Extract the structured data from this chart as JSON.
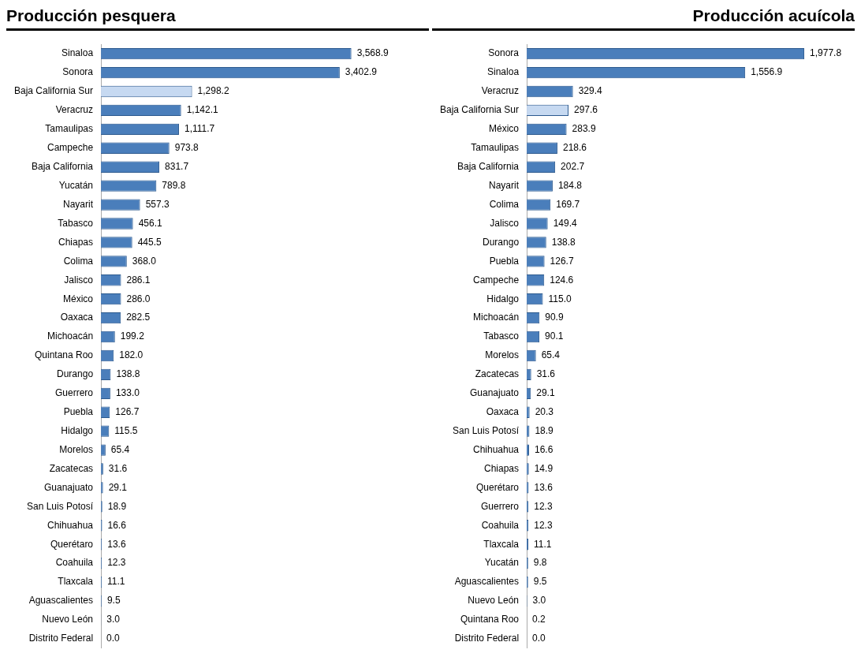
{
  "chart_data": [
    {
      "type": "bar",
      "orientation": "horizontal",
      "title": "Producción pesquera",
      "tick_labels": "y",
      "grid": false,
      "legend": false,
      "categories": [
        "Sinaloa",
        "Sonora",
        "Baja California Sur",
        "Veracruz",
        "Tamaulipas",
        "Campeche",
        "Baja California",
        "Yucatán",
        "Nayarit",
        "Tabasco",
        "Chiapas",
        "Colima",
        "Jalisco",
        "México",
        "Oaxaca",
        "Michoacán",
        "Quintana Roo",
        "Durango",
        "Guerrero",
        "Puebla",
        "Hidalgo",
        "Morelos",
        "Zacatecas",
        "Guanajuato",
        "San Luis Potosí",
        "Chihuahua",
        "Querétaro",
        "Coahuila",
        "Tlaxcala",
        "Aguascalientes",
        "Nuevo León",
        "Distrito Federal"
      ],
      "values": [
        3568.9,
        3402.9,
        1298.2,
        1142.1,
        1111.7,
        973.8,
        831.7,
        789.8,
        557.3,
        456.1,
        445.5,
        368.0,
        286.1,
        286.0,
        282.5,
        199.2,
        182.0,
        138.8,
        133.0,
        126.7,
        115.5,
        65.4,
        31.6,
        29.1,
        18.9,
        16.6,
        13.6,
        12.3,
        11.1,
        9.5,
        3.0,
        0.0
      ],
      "value_labels": [
        "3,568.9",
        "3,402.9",
        "1,298.2",
        "1,142.1",
        "1,111.7",
        "973.8",
        "831.7",
        "789.8",
        "557.3",
        "456.1",
        "445.5",
        "368.0",
        "286.1",
        "286.0",
        "282.5",
        "199.2",
        "182.0",
        "138.8",
        "133.0",
        "126.7",
        "115.5",
        "65.4",
        "31.6",
        "29.1",
        "18.9",
        "16.6",
        "13.6",
        "12.3",
        "11.1",
        "9.5",
        "3.0",
        "0.0"
      ],
      "colors": [
        "#4a7ebb",
        "#4a7ebb",
        "#c6d9f1",
        "#4a7ebb",
        "#4a7ebb",
        "#4a7ebb",
        "#4a7ebb",
        "#4a7ebb",
        "#4a7ebb",
        "#4a7ebb",
        "#4a7ebb",
        "#4a7ebb",
        "#4a7ebb",
        "#4a7ebb",
        "#4a7ebb",
        "#4a7ebb",
        "#4a7ebb",
        "#4a7ebb",
        "#4a7ebb",
        "#4a7ebb",
        "#4a7ebb",
        "#4a7ebb",
        "#4a7ebb",
        "#4a7ebb",
        "#4a7ebb",
        "#4a7ebb",
        "#4a7ebb",
        "#4a7ebb",
        "#4a7ebb",
        "#4a7ebb",
        "#4a7ebb",
        "#4a7ebb"
      ]
    },
    {
      "type": "bar",
      "orientation": "horizontal",
      "title": "Producción acuícola",
      "tick_labels": "y",
      "grid": false,
      "legend": false,
      "categories": [
        "Sonora",
        "Sinaloa",
        "Veracruz",
        "Baja California Sur",
        "México",
        "Tamaulipas",
        "Baja California",
        "Nayarit",
        "Colima",
        "Jalisco",
        "Durango",
        "Puebla",
        "Campeche",
        "Hidalgo",
        "Michoacán",
        "Tabasco",
        "Morelos",
        "Zacatecas",
        "Guanajuato",
        "Oaxaca",
        "San Luis Potosí",
        "Chihuahua",
        "Chiapas",
        "Querétaro",
        "Guerrero",
        "Coahuila",
        "Tlaxcala",
        "Yucatán",
        "Aguascalientes",
        "Nuevo León",
        "Quintana Roo",
        "Distrito Federal"
      ],
      "values": [
        1977.8,
        1556.9,
        329.4,
        297.6,
        283.9,
        218.6,
        202.7,
        184.8,
        169.7,
        149.4,
        138.8,
        126.7,
        124.6,
        115.0,
        90.9,
        90.1,
        65.4,
        31.6,
        29.1,
        20.3,
        18.9,
        16.6,
        14.9,
        13.6,
        12.3,
        12.3,
        11.1,
        9.8,
        9.5,
        3.0,
        0.2,
        0.0
      ],
      "value_labels": [
        "1,977.8",
        "1,556.9",
        "329.4",
        "297.6",
        "283.9",
        "218.6",
        "202.7",
        "184.8",
        "169.7",
        "149.4",
        "138.8",
        "126.7",
        "124.6",
        "115.0",
        "90.9",
        "90.1",
        "65.4",
        "31.6",
        "29.1",
        "20.3",
        "18.9",
        "16.6",
        "14.9",
        "13.6",
        "12.3",
        "12.3",
        "11.1",
        "9.8",
        "9.5",
        "3.0",
        "0.2",
        "0.0"
      ],
      "colors": [
        "#4a7ebb",
        "#4a7ebb",
        "#4a7ebb",
        "#c6d9f1",
        "#4a7ebb",
        "#4a7ebb",
        "#4a7ebb",
        "#4a7ebb",
        "#4a7ebb",
        "#4a7ebb",
        "#4a7ebb",
        "#4a7ebb",
        "#4a7ebb",
        "#4a7ebb",
        "#4a7ebb",
        "#4a7ebb",
        "#4a7ebb",
        "#4a7ebb",
        "#4a7ebb",
        "#4a7ebb",
        "#4a7ebb",
        "#4a7ebb",
        "#4a7ebb",
        "#4a7ebb",
        "#4a7ebb",
        "#4a7ebb",
        "#4a7ebb",
        "#4a7ebb",
        "#4a7ebb",
        "#4a7ebb",
        "#4a7ebb",
        "#4a7ebb"
      ]
    }
  ]
}
